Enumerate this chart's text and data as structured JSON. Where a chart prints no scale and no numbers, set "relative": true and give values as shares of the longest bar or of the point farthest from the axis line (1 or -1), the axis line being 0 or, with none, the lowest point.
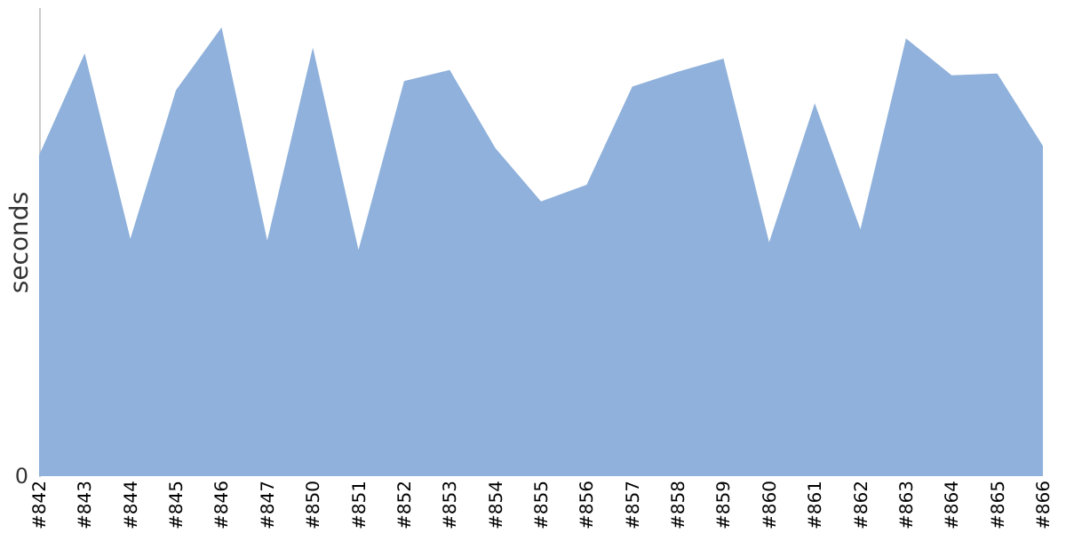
{
  "chart_data": {
    "type": "area",
    "ylabel": "seconds",
    "relative": true,
    "color": "#8fb1db",
    "categories": [
      "#842",
      "#843",
      "#844",
      "#845",
      "#846",
      "#847",
      "#850",
      "#851",
      "#852",
      "#853",
      "#854",
      "#855",
      "#856",
      "#857",
      "#858",
      "#859",
      "#860",
      "#861",
      "#862",
      "#863",
      "#864",
      "#865",
      "#866"
    ],
    "values": [
      0.715,
      0.942,
      0.529,
      0.86,
      1,
      0.525,
      0.955,
      0.504,
      0.88,
      0.905,
      0.731,
      0.612,
      0.649,
      0.868,
      0.901,
      0.93,
      0.521,
      0.831,
      0.55,
      0.975,
      0.893,
      0.897,
      0.736
    ],
    "annotations": [
      "0"
    ]
  }
}
